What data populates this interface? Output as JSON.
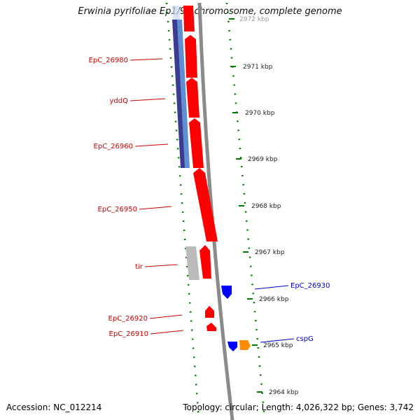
{
  "title": "Erwinia pyrifoliae Ep1/96 chromosome, complete genome",
  "footer": {
    "accession": "Accession: NC_012214",
    "topology": "Topology: circular; Length: 4,026,322 bp; Genes: 3,742"
  },
  "colors": {
    "forward_gene": "#ff0000",
    "reverse_gene": "#0000ff",
    "orange_gene": "#ff8c00",
    "gray_feature": "#bbbbbb",
    "dark_blue_feature": "#3b3b8f",
    "light_blue_feature": "#5f8fd0",
    "backbone": "#8a8a8a",
    "tick_green": "#007a00",
    "forward_label": "#cc0000",
    "reverse_label": "#0000cc"
  },
  "position_labels": [
    "2972 kbp",
    "2971 kbp",
    "2970 kbp",
    "2969 kbp",
    "2968 kbp",
    "2967 kbp",
    "2966 kbp",
    "2965 kbp",
    "2964 kbp"
  ],
  "gene_labels": [
    {
      "text": "EpC_26980",
      "strand": "forward"
    },
    {
      "text": "yddQ",
      "strand": "forward"
    },
    {
      "text": "EpC_26960",
      "strand": "forward"
    },
    {
      "text": "EpC_26950",
      "strand": "forward"
    },
    {
      "text": "tir",
      "strand": "forward"
    },
    {
      "text": "EpC_26920",
      "strand": "forward"
    },
    {
      "text": "EpC_26910",
      "strand": "forward"
    },
    {
      "text": "EpC_26930",
      "strand": "reverse"
    },
    {
      "text": "cspG",
      "strand": "reverse"
    }
  ]
}
